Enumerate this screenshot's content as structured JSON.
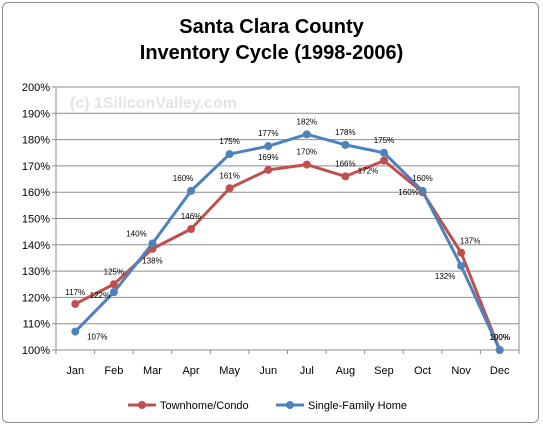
{
  "chart_data": {
    "type": "line",
    "title": [
      "Santa Clara County",
      "Inventory Cycle (1998-2006)"
    ],
    "watermark": "(c) 1SiliconValley.com",
    "categories": [
      "Jan",
      "Feb",
      "Mar",
      "Apr",
      "May",
      "Jun",
      "Jul",
      "Aug",
      "Sep",
      "Oct",
      "Nov",
      "Dec"
    ],
    "y_ticks": [
      "100%",
      "110%",
      "120%",
      "130%",
      "140%",
      "150%",
      "160%",
      "170%",
      "180%",
      "190%",
      "200%"
    ],
    "ylim": [
      100,
      200
    ],
    "grid": true,
    "legend_position": "bottom",
    "series": [
      {
        "name": "Townhome/Condo",
        "color": "#c0504d",
        "values": [
          117.5,
          125,
          138.5,
          146,
          161.5,
          168.5,
          170.5,
          166,
          172,
          160,
          137,
          100
        ],
        "labels": [
          "117%",
          "125%",
          "138%",
          "146%",
          "161%",
          "169%",
          "170%",
          "166%",
          "172%",
          "160%",
          "137%",
          "100%"
        ]
      },
      {
        "name": "Single-Family Home",
        "color": "#4f81bd",
        "values": [
          107,
          122,
          140.5,
          160.5,
          174.5,
          177.5,
          182,
          178,
          175,
          160.5,
          132,
          100
        ],
        "labels": [
          "107%",
          "122%",
          "140%",
          "160%",
          "175%",
          "177%",
          "182%",
          "178%",
          "175%",
          "160%",
          "132%",
          "100%"
        ]
      }
    ]
  }
}
